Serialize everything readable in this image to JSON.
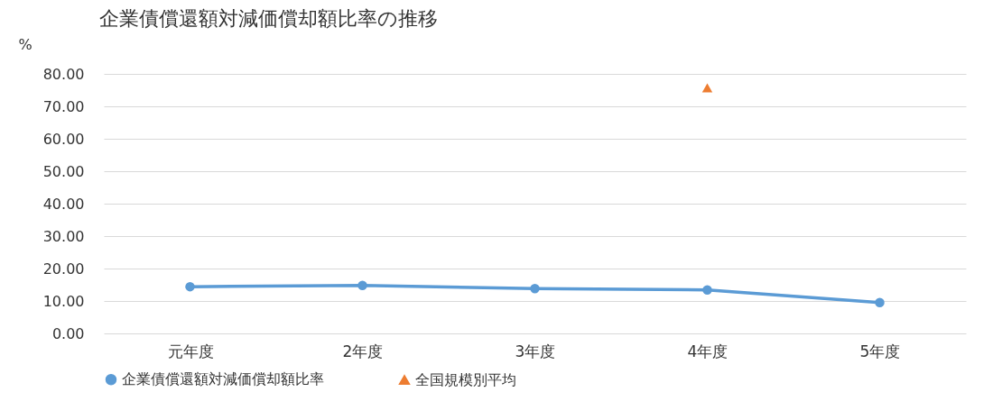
{
  "chart_data": {
    "type": "line",
    "title": "企業債償還額対減価償却額比率の推移",
    "ylabel": "%",
    "categories": [
      "元年度",
      "2年度",
      "3年度",
      "4年度",
      "5年度"
    ],
    "series": [
      {
        "name": "企業債償還額対減価償却額比率",
        "marker": "circle",
        "color": "#5b9bd5",
        "values": [
          14.4,
          14.8,
          13.8,
          13.4,
          9.5
        ]
      },
      {
        "name": "全国規模別平均",
        "type": "scatter",
        "marker": "triangle",
        "color": "#ed7d31",
        "values": [
          null,
          null,
          null,
          75.7,
          null
        ]
      }
    ],
    "ylim": [
      0,
      80
    ],
    "yticks": [
      {
        "value": 0,
        "label": "0.00"
      },
      {
        "value": 10,
        "label": "10.00"
      },
      {
        "value": 20,
        "label": "20.00"
      },
      {
        "value": 30,
        "label": "30.00"
      },
      {
        "value": 40,
        "label": "40.00"
      },
      {
        "value": 50,
        "label": "50.00"
      },
      {
        "value": 60,
        "label": "60.00"
      },
      {
        "value": 70,
        "label": "70.00"
      },
      {
        "value": 80,
        "label": "80.00"
      }
    ],
    "grid": "y",
    "legend": "bottom"
  }
}
